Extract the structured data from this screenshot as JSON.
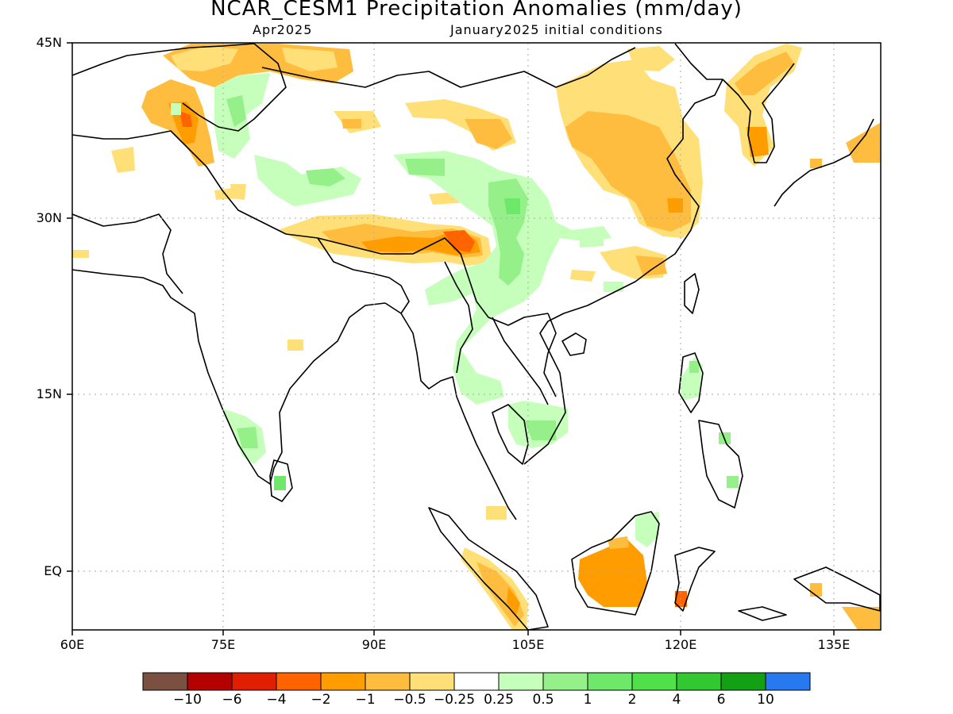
{
  "title": "NCAR_CESM1 Precipitation Anomalies (mm/day)",
  "subtitle_left": "Apr2025",
  "subtitle_right": "January2025 initial conditions",
  "lat_labels": [
    "45N",
    "30N",
    "15N",
    "EQ"
  ],
  "lon_labels": [
    "60E",
    "75E",
    "90E",
    "105E",
    "120E",
    "135E"
  ],
  "colorbar": {
    "colors": [
      "#7a5040",
      "#b40000",
      "#e01e00",
      "#ff6400",
      "#ff9d00",
      "#ffbd40",
      "#ffe078",
      "#ffffff",
      "#c6ffbc",
      "#96f08a",
      "#6ee868",
      "#4fe04a",
      "#32c832",
      "#14a014",
      "#2878f0"
    ],
    "labels": [
      "−10",
      "−6",
      "−4",
      "−2",
      "−1",
      "−0.5",
      "−0.25",
      "0.25",
      "0.5",
      "1",
      "2",
      "4",
      "6",
      "10"
    ]
  }
}
